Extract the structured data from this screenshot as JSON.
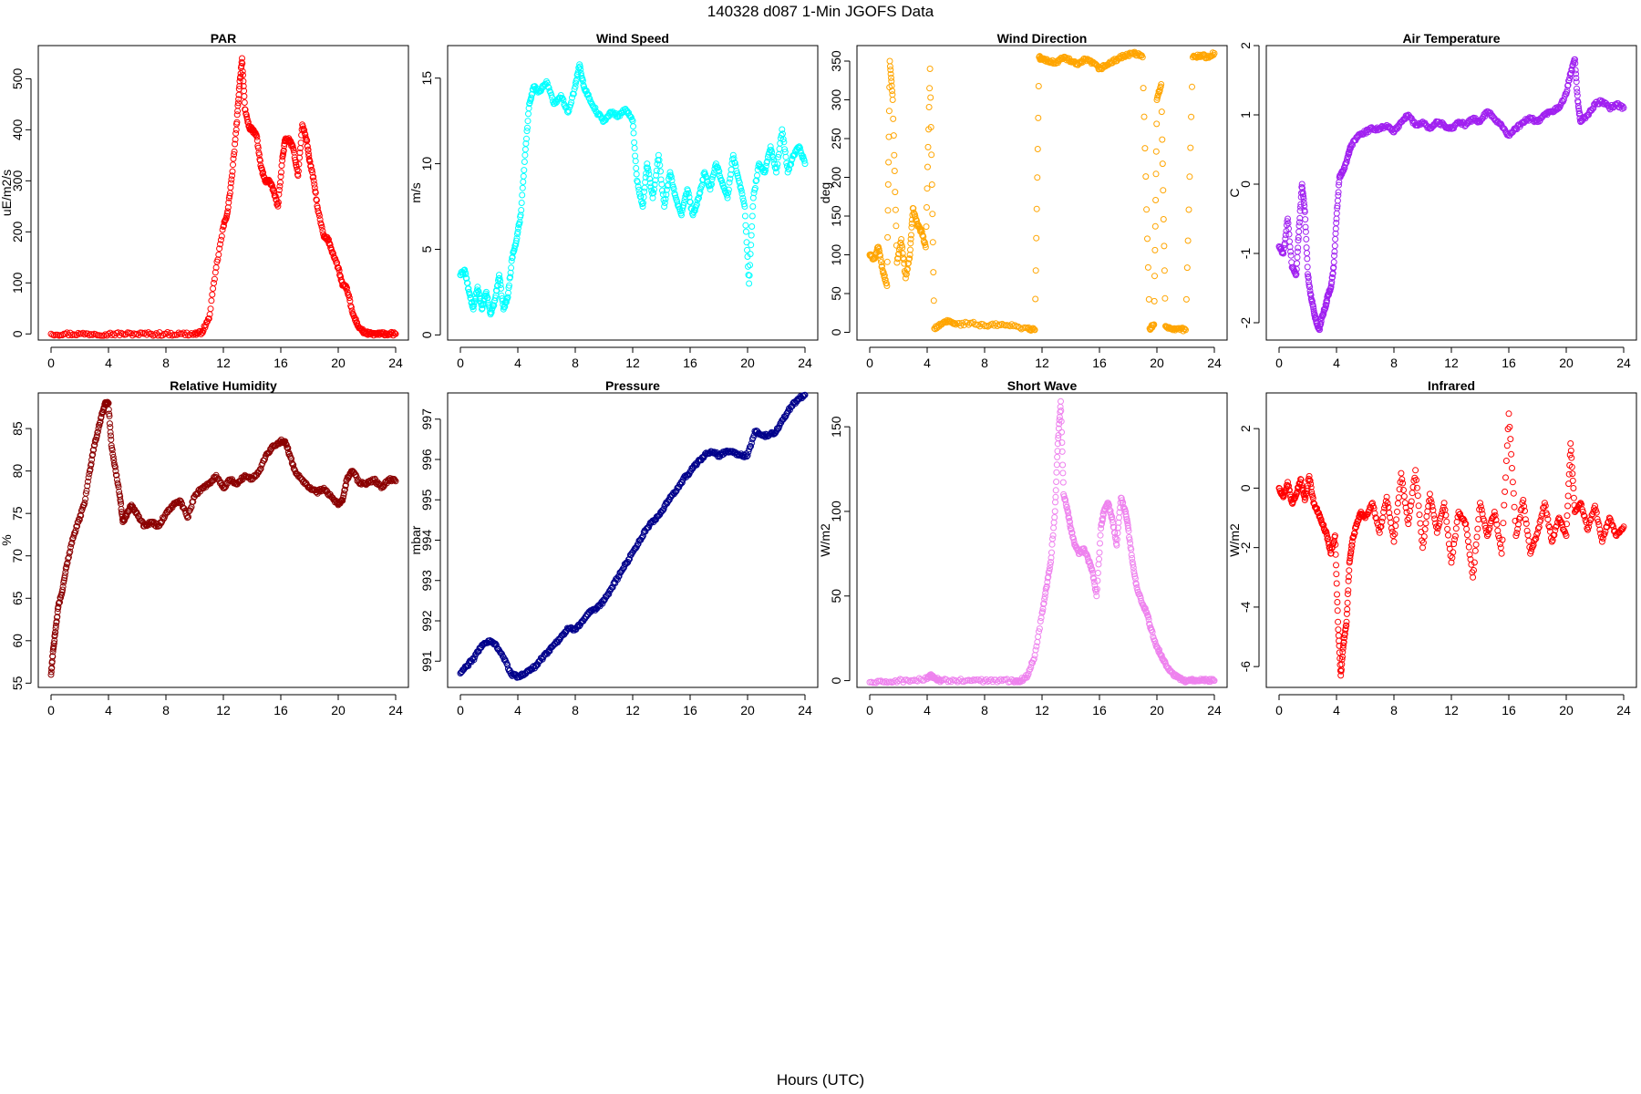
{
  "title": "140328   d087   1-Min  JGOFS Data",
  "xlabel": "Hours (UTC)",
  "chart_data": [
    {
      "type": "scatter",
      "title": "PAR",
      "ylabel": "uE/m2/s",
      "color": "#ff0000",
      "xlim": [
        0,
        24
      ],
      "xticks": [
        0,
        4,
        8,
        12,
        16,
        20,
        24
      ],
      "ylim": [
        -12,
        565
      ],
      "yticks": [
        0,
        100,
        200,
        300,
        400,
        500
      ],
      "series": [
        {
          "x": [
            0,
            1,
            2,
            3,
            4,
            5,
            6,
            7,
            8,
            9,
            10,
            10.5,
            11,
            11.5,
            12,
            12.3,
            12.6,
            12.9,
            13.1,
            13.3,
            13.5,
            13.8,
            14,
            14.3,
            14.6,
            14.9,
            15.2,
            15.5,
            15.8,
            16.1,
            16.3,
            16.6,
            16.9,
            17.2,
            17.5,
            17.8,
            18,
            18.3,
            18.6,
            19,
            19.3,
            19.6,
            20,
            20.3,
            20.6,
            21,
            21.4,
            21.8,
            22.2,
            22.6,
            23,
            23.5,
            24
          ],
          "y": [
            0,
            0,
            0,
            0,
            0,
            0,
            0,
            0,
            0,
            0,
            0,
            3,
            30,
            130,
            210,
            240,
            310,
            400,
            480,
            540,
            440,
            405,
            400,
            390,
            330,
            300,
            300,
            280,
            250,
            340,
            380,
            380,
            360,
            310,
            410,
            380,
            340,
            300,
            240,
            190,
            185,
            160,
            130,
            95,
            90,
            40,
            15,
            3,
            0,
            0,
            0,
            0,
            0
          ]
        }
      ]
    },
    {
      "type": "scatter",
      "title": "Wind Speed",
      "ylabel": "m/s",
      "color": "#00ffff",
      "xlim": [
        0,
        24
      ],
      "xticks": [
        0,
        4,
        8,
        12,
        16,
        20,
        24
      ],
      "ylim": [
        -0.3,
        16.9
      ],
      "yticks": [
        0,
        5,
        10,
        15
      ],
      "series": [
        {
          "x": [
            0,
            0.3,
            0.6,
            0.9,
            1.2,
            1.5,
            1.8,
            2.1,
            2.4,
            2.7,
            3,
            3.3,
            3.6,
            3.9,
            4.2,
            4.5,
            4.8,
            5.1,
            5.5,
            6,
            6.5,
            7,
            7.5,
            8,
            8.3,
            8.6,
            9,
            9.5,
            10,
            10.5,
            11,
            11.5,
            12,
            12.3,
            12.7,
            13,
            13.4,
            13.8,
            14.2,
            14.6,
            15,
            15.4,
            15.8,
            16.2,
            16.6,
            17,
            17.4,
            17.8,
            18.2,
            18.6,
            19,
            19.4,
            19.8,
            20.1,
            20.4,
            20.8,
            21.2,
            21.6,
            22,
            22.4,
            22.8,
            23.2,
            23.6,
            24
          ],
          "y": [
            3.5,
            3.8,
            2.5,
            1.5,
            2.8,
            1.5,
            2.5,
            1.2,
            2,
            3.5,
            1.5,
            2.2,
            4.5,
            5.5,
            7,
            10.5,
            13.5,
            14.5,
            14.2,
            14.8,
            13.5,
            14,
            13,
            14.5,
            15.8,
            14.5,
            13.8,
            13,
            12.5,
            13,
            12.8,
            13.2,
            12.5,
            9,
            7.5,
            10,
            8,
            10.5,
            7.5,
            9.5,
            8,
            7,
            8.5,
            7,
            8,
            9.5,
            8.5,
            10,
            9,
            8,
            10.5,
            9,
            7.5,
            3,
            8,
            10,
            9.5,
            11,
            9.5,
            12,
            9.5,
            10.5,
            11,
            10
          ]
        }
      ]
    },
    {
      "type": "scatter",
      "title": "Wind Direction",
      "ylabel": "deg",
      "color": "#ffa500",
      "xlim": [
        0,
        24
      ],
      "xticks": [
        0,
        4,
        8,
        12,
        16,
        20,
        24
      ],
      "ylim": [
        -10,
        370
      ],
      "yticks": [
        0,
        50,
        100,
        150,
        200,
        250,
        300,
        350
      ],
      "series": [
        {
          "x": [
            0,
            0.3,
            0.6,
            0.9,
            1.2,
            1.4,
            1.6,
            1.9,
            2.2,
            2.5,
            2.8,
            3,
            3.3,
            3.6,
            3.9,
            4.2,
            4.5,
            5,
            5.5,
            6,
            7,
            8,
            9,
            10,
            11,
            11.5,
            11.8,
            12,
            12.5,
            13,
            13.5,
            14,
            14.5,
            15,
            15.5,
            16,
            16.5,
            17,
            17.5,
            18,
            18.5,
            19,
            19.5,
            19.8,
            20,
            20.3,
            20.6,
            21,
            21.5,
            22,
            22.5,
            23,
            23.5,
            24
          ],
          "y": [
            100,
            95,
            110,
            80,
            60,
            350,
            300,
            90,
            120,
            70,
            100,
            160,
            140,
            130,
            110,
            340,
            5,
            10,
            15,
            10,
            12,
            8,
            10,
            8,
            5,
            3,
            355,
            352,
            350,
            348,
            355,
            350,
            345,
            352,
            348,
            340,
            345,
            350,
            355,
            358,
            360,
            355,
            5,
            10,
            300,
            320,
            8,
            5,
            5,
            3,
            355,
            358,
            355,
            360
          ]
        }
      ]
    },
    {
      "type": "scatter",
      "title": "Air Temperature",
      "ylabel": "C",
      "color": "#a020f0",
      "xlim": [
        0,
        24
      ],
      "xticks": [
        0,
        4,
        8,
        12,
        16,
        20,
        24
      ],
      "ylim": [
        -2.25,
        2.0
      ],
      "yticks": [
        -2,
        -1,
        0,
        1,
        2
      ],
      "series": [
        {
          "x": [
            0,
            0.3,
            0.6,
            0.9,
            1.2,
            1.4,
            1.6,
            1.8,
            2,
            2.2,
            2.4,
            2.6,
            2.8,
            3,
            3.2,
            3.4,
            3.6,
            3.8,
            4,
            4.2,
            4.5,
            4.8,
            5,
            5.5,
            6,
            6.5,
            7,
            7.5,
            8,
            8.5,
            9,
            9.5,
            10,
            10.5,
            11,
            11.5,
            12,
            12.5,
            13,
            13.5,
            14,
            14.5,
            15,
            15.5,
            16,
            16.5,
            17,
            17.5,
            18,
            18.5,
            19,
            19.5,
            20,
            20.3,
            20.6,
            20.8,
            21,
            21.5,
            22,
            22.5,
            23,
            23.5,
            24
          ],
          "y": [
            -0.9,
            -1,
            -0.5,
            -1.2,
            -1.3,
            -0.6,
            0,
            -0.4,
            -1.3,
            -1.6,
            -1.8,
            -2,
            -2.1,
            -1.9,
            -1.8,
            -1.6,
            -1.5,
            -1.2,
            -0.5,
            0.1,
            0.2,
            0.4,
            0.55,
            0.7,
            0.75,
            0.8,
            0.8,
            0.85,
            0.75,
            0.9,
            1,
            0.85,
            0.9,
            0.8,
            0.9,
            0.85,
            0.8,
            0.9,
            0.85,
            0.95,
            0.9,
            1.05,
            0.95,
            0.85,
            0.7,
            0.8,
            0.9,
            0.95,
            0.9,
            1,
            1.05,
            1.1,
            1.3,
            1.6,
            1.8,
            1.2,
            0.9,
            1,
            1.15,
            1.2,
            1.1,
            1.15,
            1.1
          ]
        }
      ]
    },
    {
      "type": "scatter",
      "title": "Relative Humidity",
      "ylabel": "%",
      "color": "#8b0000",
      "xlim": [
        0,
        24
      ],
      "xticks": [
        0,
        4,
        8,
        12,
        16,
        20,
        24
      ],
      "ylim": [
        54.5,
        89.2
      ],
      "yticks": [
        55,
        60,
        65,
        70,
        75,
        80,
        85
      ],
      "series": [
        {
          "x": [
            0,
            0.15,
            0.3,
            0.5,
            0.8,
            1.1,
            1.5,
            1.9,
            2.3,
            2.7,
            3,
            3.3,
            3.6,
            3.8,
            4,
            4.2,
            4.5,
            4.8,
            5,
            5.3,
            5.6,
            6,
            6.5,
            7,
            7.5,
            8,
            8.5,
            9,
            9.5,
            10,
            10.5,
            11,
            11.5,
            12,
            12.5,
            13,
            13.5,
            14,
            14.5,
            15,
            15.5,
            16,
            16.3,
            16.6,
            17,
            17.5,
            18,
            18.5,
            19,
            19.5,
            20,
            20.3,
            20.6,
            21,
            21.5,
            22,
            22.5,
            23,
            23.5,
            24
          ],
          "y": [
            56,
            59,
            61,
            64,
            66,
            69,
            72,
            74,
            76,
            80,
            83,
            85,
            87,
            88,
            88,
            83,
            80,
            77,
            74,
            75,
            76,
            75,
            73.5,
            74,
            73.5,
            75,
            76,
            76.5,
            74.5,
            77,
            78,
            78.5,
            79.5,
            78,
            79,
            78.5,
            79.5,
            79,
            80,
            82,
            83,
            83.5,
            83.5,
            82,
            80,
            79,
            78,
            77.5,
            78,
            77,
            76,
            76.5,
            79,
            80,
            78.5,
            78.5,
            79,
            78,
            79,
            78.8
          ]
        }
      ]
    },
    {
      "type": "scatter",
      "title": "Pressure",
      "ylabel": "mbar",
      "color": "#00008b",
      "xlim": [
        0,
        24
      ],
      "xticks": [
        0,
        4,
        8,
        12,
        16,
        20,
        24
      ],
      "ylim": [
        990.35,
        997.65
      ],
      "yticks": [
        991,
        992,
        993,
        994,
        995,
        996,
        997
      ],
      "series": [
        {
          "x": [
            0,
            0.5,
            1,
            1.5,
            2,
            2.5,
            3,
            3.5,
            4,
            4.5,
            5,
            5.5,
            6,
            6.5,
            7,
            7.5,
            8,
            8.5,
            9,
            9.5,
            10,
            10.5,
            11,
            11.5,
            12,
            12.5,
            13,
            13.5,
            14,
            14.5,
            15,
            15.5,
            16,
            16.5,
            17,
            17.5,
            18,
            18.5,
            19,
            19.5,
            20,
            20.5,
            21,
            21.5,
            22,
            22.5,
            23,
            23.5,
            24
          ],
          "y": [
            990.7,
            990.9,
            991.1,
            991.4,
            991.5,
            991.4,
            991.1,
            990.7,
            990.6,
            990.7,
            990.8,
            991,
            991.2,
            991.4,
            991.6,
            991.8,
            991.8,
            992,
            992.2,
            992.3,
            992.5,
            992.8,
            993.1,
            993.4,
            993.7,
            994,
            994.3,
            994.5,
            994.7,
            995,
            995.2,
            995.5,
            995.7,
            995.9,
            996.1,
            996.2,
            996.1,
            996.2,
            996.2,
            996.1,
            996.1,
            996.7,
            996.6,
            996.6,
            996.7,
            997,
            997.3,
            997.5,
            997.6
          ]
        }
      ]
    },
    {
      "type": "scatter",
      "title": "Short Wave",
      "ylabel": "W/m2",
      "color": "#ee82ee",
      "xlim": [
        0,
        24
      ],
      "xticks": [
        0,
        4,
        8,
        12,
        16,
        20,
        24
      ],
      "ylim": [
        -4,
        170
      ],
      "yticks": [
        0,
        50,
        100,
        150
      ],
      "series": [
        {
          "x": [
            0,
            1,
            2,
            3,
            4,
            4.3,
            4.6,
            5,
            6,
            7,
            8,
            9,
            10,
            10.5,
            11,
            11.5,
            12,
            12.3,
            12.6,
            12.9,
            13.1,
            13.3,
            13.5,
            13.8,
            14,
            14.3,
            14.6,
            14.9,
            15.2,
            15.5,
            15.8,
            16.1,
            16.3,
            16.6,
            16.9,
            17.2,
            17.5,
            17.8,
            18,
            18.3,
            18.6,
            19,
            19.3,
            19.6,
            20,
            20.3,
            20.6,
            21,
            21.4,
            21.8,
            22.2,
            22.6,
            23,
            23.5,
            24
          ],
          "y": [
            -1,
            -1,
            0,
            0,
            1,
            3,
            1,
            0,
            0,
            0,
            0,
            0,
            0,
            0,
            3,
            15,
            40,
            55,
            70,
            100,
            140,
            165,
            110,
            100,
            90,
            80,
            75,
            78,
            72,
            65,
            50,
            90,
            100,
            105,
            95,
            80,
            108,
            100,
            90,
            70,
            55,
            45,
            40,
            30,
            20,
            15,
            10,
            5,
            2,
            0,
            0,
            0,
            0,
            0,
            0
          ]
        }
      ]
    },
    {
      "type": "scatter",
      "title": "Infrared",
      "ylabel": "W/m2",
      "color": "#ff0000",
      "xlim": [
        0,
        24
      ],
      "xticks": [
        0,
        4,
        8,
        12,
        16,
        20,
        24
      ],
      "ylim": [
        -6.7,
        3.2
      ],
      "yticks": [
        -6,
        -4,
        -2,
        0,
        2
      ],
      "series": [
        {
          "x": [
            0,
            0.3,
            0.6,
            0.9,
            1.2,
            1.5,
            1.8,
            2.1,
            2.4,
            2.7,
            3,
            3.3,
            3.6,
            3.9,
            4.1,
            4.3,
            4.5,
            4.7,
            4.9,
            5.1,
            5.4,
            5.7,
            6,
            6.5,
            7,
            7.5,
            8,
            8.5,
            9,
            9.5,
            10,
            10.5,
            11,
            11.5,
            12,
            12.5,
            13,
            13.5,
            14,
            14.5,
            15,
            15.5,
            16,
            16.5,
            17,
            17.5,
            18,
            18.5,
            19,
            19.5,
            20,
            20.3,
            20.6,
            21,
            21.5,
            22,
            22.5,
            23,
            23.5,
            24
          ],
          "y": [
            0,
            -0.3,
            0.2,
            -0.5,
            -0.2,
            0.3,
            -0.4,
            0.4,
            -0.5,
            -0.8,
            -1.2,
            -1.5,
            -2.2,
            -1.6,
            -4.5,
            -6.3,
            -5.2,
            -4.5,
            -2.5,
            -1.8,
            -1.2,
            -0.8,
            -1,
            -0.5,
            -1.5,
            -0.3,
            -1.8,
            0.5,
            -1.2,
            0.6,
            -2,
            -0.2,
            -1.5,
            -0.5,
            -2.5,
            -0.8,
            -1.2,
            -3,
            -0.5,
            -1.6,
            -0.8,
            -2.2,
            2.5,
            -1.6,
            -0.4,
            -2.2,
            -1.5,
            -0.5,
            -1.8,
            -1,
            -1.6,
            1.5,
            -0.8,
            -0.5,
            -1.4,
            -0.6,
            -1.8,
            -1,
            -1.6,
            -1.3
          ]
        }
      ]
    }
  ]
}
